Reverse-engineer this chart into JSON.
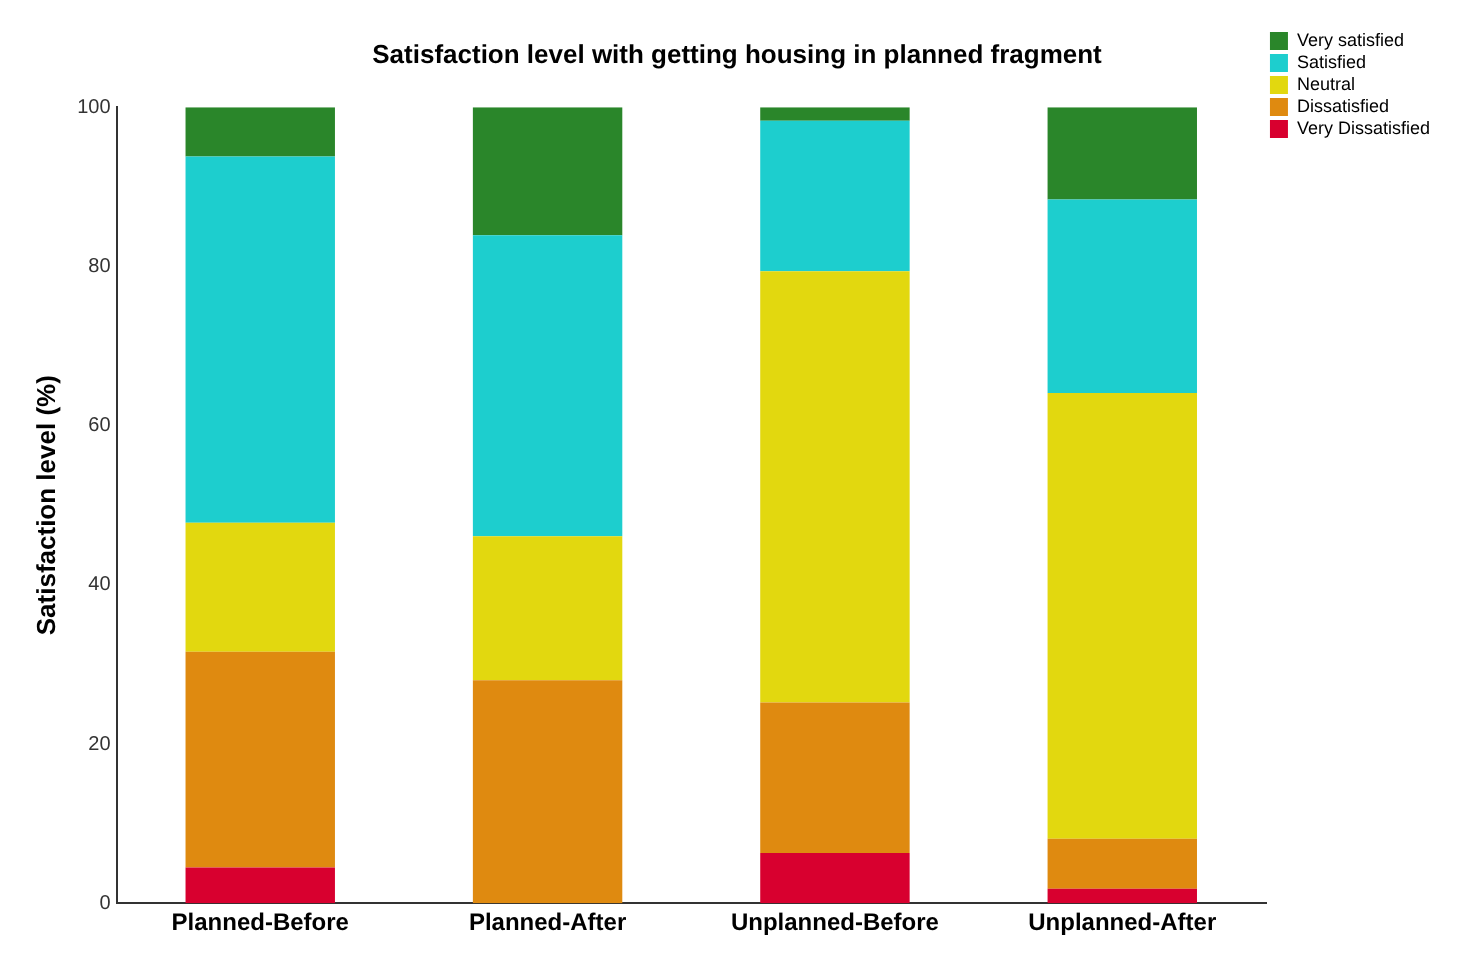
{
  "chart_data": {
    "type": "bar",
    "title": "Satisfaction level with getting housing in planned fragment",
    "ylabel": "Satisfaction level (%)",
    "categories": [
      "Planned-Before",
      "Planned-After",
      "Unplanned-Before",
      "Unplanned-After"
    ],
    "series": [
      {
        "name": "Very Dissatisfied",
        "color": "#d8002f",
        "values": [
          4.5,
          0,
          6.3,
          1.8
        ]
      },
      {
        "name": "Dissatisfied",
        "color": "#df8a10",
        "values": [
          27.1,
          28.0,
          18.9,
          6.3
        ]
      },
      {
        "name": "Neutral",
        "color": "#e2d80f",
        "values": [
          16.2,
          18.1,
          54.2,
          56.0
        ]
      },
      {
        "name": "Satisfied",
        "color": "#1dcece",
        "values": [
          46.0,
          37.8,
          18.9,
          24.3
        ]
      },
      {
        "name": "Very satisfied",
        "color": "#2a862a",
        "values": [
          6.2,
          16.1,
          1.7,
          11.6
        ]
      }
    ],
    "stacked": true,
    "ylim": [
      0,
      100
    ],
    "yticks": [
      0,
      20,
      40,
      60,
      80,
      100
    ],
    "grid": false,
    "legend": "top right"
  }
}
